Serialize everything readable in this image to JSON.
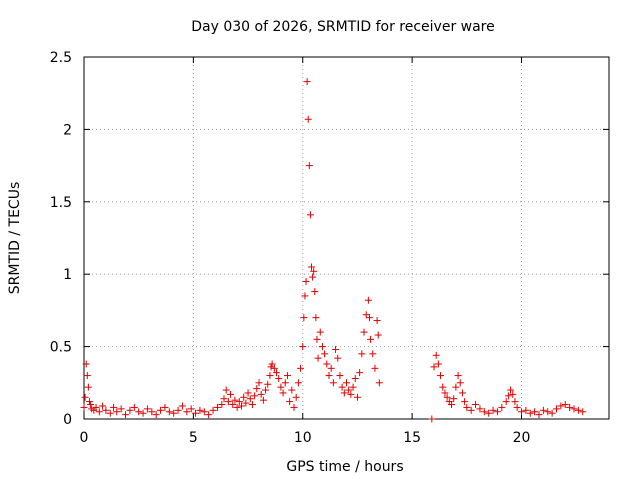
{
  "chart_data": {
    "type": "scatter",
    "title": "Day 030 of 2026, SRMTID for receiver ware",
    "xlabel": "GPS time / hours",
    "ylabel": "SRMTID / TECUs",
    "xlim": [
      0,
      24
    ],
    "ylim": [
      0,
      2.5
    ],
    "xticks": [
      0,
      5,
      10,
      15,
      20
    ],
    "xtick_labels": [
      "0",
      "5",
      "10",
      "15",
      "20"
    ],
    "yticks": [
      0,
      0.5,
      1,
      1.5,
      2,
      2.5
    ],
    "ytick_labels": [
      "0",
      "0.5",
      "1",
      "1.5",
      "2",
      "2.5"
    ],
    "grid": true,
    "marker": "+",
    "series_color": "#e00000",
    "series": [
      {
        "name": "SRMTID",
        "points": [
          [
            0.0,
            0.08
          ],
          [
            0.05,
            0.15
          ],
          [
            0.1,
            0.38
          ],
          [
            0.15,
            0.3
          ],
          [
            0.2,
            0.22
          ],
          [
            0.25,
            0.12
          ],
          [
            0.3,
            0.1
          ],
          [
            0.35,
            0.07
          ],
          [
            0.45,
            0.06
          ],
          [
            0.55,
            0.08
          ],
          [
            0.7,
            0.05
          ],
          [
            0.85,
            0.09
          ],
          [
            1.0,
            0.06
          ],
          [
            1.2,
            0.04
          ],
          [
            1.35,
            0.08
          ],
          [
            1.5,
            0.05
          ],
          [
            1.7,
            0.07
          ],
          [
            1.9,
            0.03
          ],
          [
            2.1,
            0.06
          ],
          [
            2.3,
            0.08
          ],
          [
            2.5,
            0.05
          ],
          [
            2.7,
            0.04
          ],
          [
            2.9,
            0.07
          ],
          [
            3.1,
            0.05
          ],
          [
            3.3,
            0.03
          ],
          [
            3.5,
            0.06
          ],
          [
            3.7,
            0.08
          ],
          [
            3.9,
            0.05
          ],
          [
            4.1,
            0.04
          ],
          [
            4.3,
            0.06
          ],
          [
            4.5,
            0.09
          ],
          [
            4.7,
            0.05
          ],
          [
            4.9,
            0.07
          ],
          [
            5.1,
            0.04
          ],
          [
            5.3,
            0.06
          ],
          [
            5.5,
            0.05
          ],
          [
            5.7,
            0.03
          ],
          [
            5.9,
            0.06
          ],
          [
            6.1,
            0.08
          ],
          [
            6.3,
            0.1
          ],
          [
            6.4,
            0.14
          ],
          [
            6.5,
            0.2
          ],
          [
            6.6,
            0.12
          ],
          [
            6.7,
            0.17
          ],
          [
            6.8,
            0.1
          ],
          [
            6.9,
            0.13
          ],
          [
            7.0,
            0.08
          ],
          [
            7.1,
            0.12
          ],
          [
            7.2,
            0.09
          ],
          [
            7.3,
            0.15
          ],
          [
            7.4,
            0.11
          ],
          [
            7.5,
            0.18
          ],
          [
            7.6,
            0.14
          ],
          [
            7.7,
            0.1
          ],
          [
            7.8,
            0.16
          ],
          [
            7.9,
            0.21
          ],
          [
            8.0,
            0.25
          ],
          [
            8.1,
            0.17
          ],
          [
            8.2,
            0.13
          ],
          [
            8.3,
            0.2
          ],
          [
            8.4,
            0.24
          ],
          [
            8.5,
            0.3
          ],
          [
            8.55,
            0.36
          ],
          [
            8.6,
            0.38
          ],
          [
            8.7,
            0.35
          ],
          [
            8.8,
            0.32
          ],
          [
            8.9,
            0.28
          ],
          [
            9.0,
            0.22
          ],
          [
            9.1,
            0.18
          ],
          [
            9.2,
            0.25
          ],
          [
            9.3,
            0.3
          ],
          [
            9.4,
            0.12
          ],
          [
            9.5,
            0.2
          ],
          [
            9.6,
            0.08
          ],
          [
            9.7,
            0.15
          ],
          [
            9.8,
            0.25
          ],
          [
            9.9,
            0.35
          ],
          [
            10.0,
            0.5
          ],
          [
            10.05,
            0.7
          ],
          [
            10.1,
            0.85
          ],
          [
            10.15,
            0.95
          ],
          [
            10.2,
            2.33
          ],
          [
            10.25,
            2.07
          ],
          [
            10.3,
            1.75
          ],
          [
            10.35,
            1.41
          ],
          [
            10.4,
            1.05
          ],
          [
            10.45,
            0.98
          ],
          [
            10.5,
            1.02
          ],
          [
            10.55,
            0.88
          ],
          [
            10.6,
            0.7
          ],
          [
            10.65,
            0.55
          ],
          [
            10.7,
            0.42
          ],
          [
            10.8,
            0.6
          ],
          [
            10.9,
            0.5
          ],
          [
            11.0,
            0.45
          ],
          [
            11.1,
            0.38
          ],
          [
            11.2,
            0.3
          ],
          [
            11.3,
            0.35
          ],
          [
            11.4,
            0.25
          ],
          [
            11.5,
            0.48
          ],
          [
            11.6,
            0.42
          ],
          [
            11.7,
            0.3
          ],
          [
            11.8,
            0.22
          ],
          [
            11.9,
            0.18
          ],
          [
            12.0,
            0.25
          ],
          [
            12.1,
            0.2
          ],
          [
            12.2,
            0.17
          ],
          [
            12.3,
            0.22
          ],
          [
            12.4,
            0.28
          ],
          [
            12.5,
            0.15
          ],
          [
            12.6,
            0.32
          ],
          [
            12.7,
            0.45
          ],
          [
            12.8,
            0.6
          ],
          [
            12.9,
            0.72
          ],
          [
            13.0,
            0.82
          ],
          [
            13.05,
            0.7
          ],
          [
            13.1,
            0.55
          ],
          [
            13.2,
            0.45
          ],
          [
            13.3,
            0.35
          ],
          [
            13.4,
            0.68
          ],
          [
            13.45,
            0.58
          ],
          [
            13.5,
            0.25
          ],
          [
            15.9,
            0.0
          ],
          [
            16.0,
            0.36
          ],
          [
            16.1,
            0.44
          ],
          [
            16.2,
            0.38
          ],
          [
            16.3,
            0.3
          ],
          [
            16.4,
            0.22
          ],
          [
            16.5,
            0.18
          ],
          [
            16.6,
            0.15
          ],
          [
            16.7,
            0.12
          ],
          [
            16.8,
            0.1
          ],
          [
            16.9,
            0.14
          ],
          [
            17.0,
            0.22
          ],
          [
            17.1,
            0.3
          ],
          [
            17.2,
            0.25
          ],
          [
            17.3,
            0.18
          ],
          [
            17.4,
            0.12
          ],
          [
            17.5,
            0.08
          ],
          [
            17.7,
            0.06
          ],
          [
            17.9,
            0.1
          ],
          [
            18.1,
            0.07
          ],
          [
            18.3,
            0.05
          ],
          [
            18.5,
            0.04
          ],
          [
            18.7,
            0.06
          ],
          [
            18.9,
            0.05
          ],
          [
            19.1,
            0.08
          ],
          [
            19.3,
            0.12
          ],
          [
            19.4,
            0.16
          ],
          [
            19.5,
            0.2
          ],
          [
            19.6,
            0.17
          ],
          [
            19.7,
            0.12
          ],
          [
            19.8,
            0.08
          ],
          [
            20.0,
            0.05
          ],
          [
            20.2,
            0.06
          ],
          [
            20.4,
            0.04
          ],
          [
            20.6,
            0.05
          ],
          [
            20.8,
            0.03
          ],
          [
            21.0,
            0.06
          ],
          [
            21.2,
            0.05
          ],
          [
            21.4,
            0.04
          ],
          [
            21.6,
            0.07
          ],
          [
            21.8,
            0.09
          ],
          [
            22.0,
            0.1
          ],
          [
            22.2,
            0.08
          ],
          [
            22.4,
            0.07
          ],
          [
            22.6,
            0.06
          ],
          [
            22.8,
            0.05
          ]
        ]
      }
    ]
  }
}
